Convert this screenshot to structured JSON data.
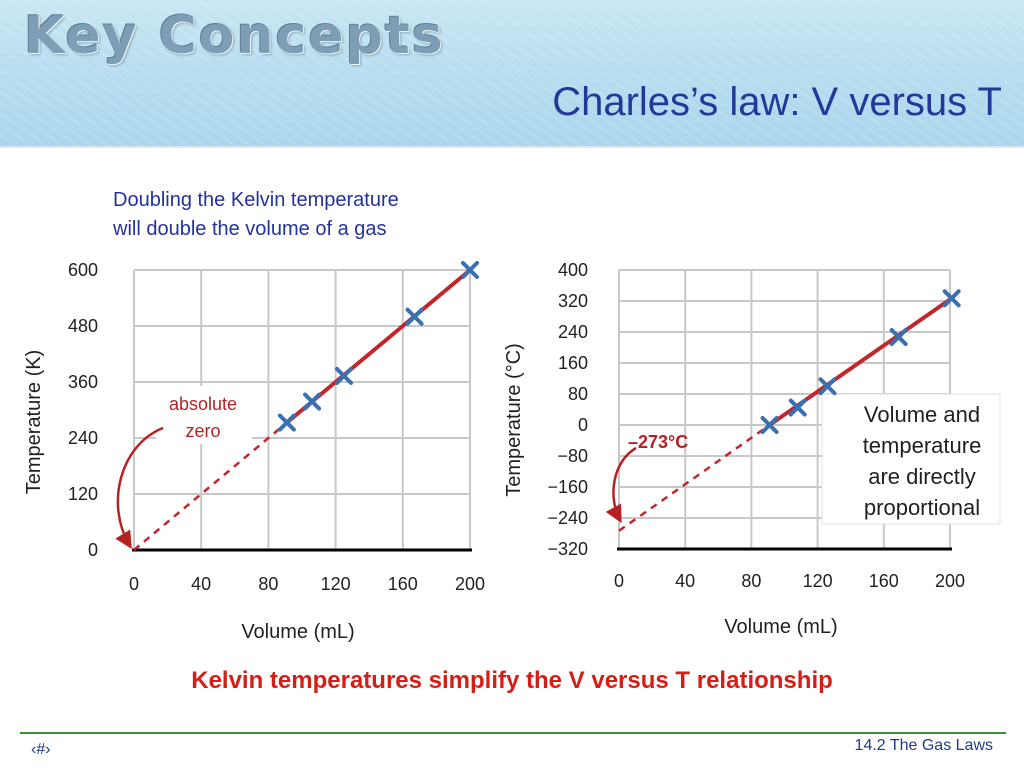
{
  "header": {
    "brand": "Key Concepts",
    "title": "Charles’s law: V versus T"
  },
  "intro": {
    "line1": "Doubling the Kelvin temperature",
    "line2": "will double the volume of a gas"
  },
  "chart_data": [
    {
      "type": "scatter",
      "xlabel": "Volume (mL)",
      "ylabel": "Temperature (K)",
      "x_ticks": [
        "0",
        "40",
        "80",
        "120",
        "160",
        "200"
      ],
      "y_ticks": [
        "0",
        "120",
        "240",
        "360",
        "480",
        "600"
      ],
      "xlim": [
        0,
        200
      ],
      "ylim": [
        0,
        600
      ],
      "grid": true,
      "points": [
        {
          "x": 91,
          "y": 273
        },
        {
          "x": 106,
          "y": 318
        },
        {
          "x": 125,
          "y": 373
        },
        {
          "x": 167,
          "y": 500
        },
        {
          "x": 200,
          "y": 600
        }
      ],
      "fit_line": {
        "from": [
          91,
          273
        ],
        "to": [
          200,
          600
        ],
        "color": "#c0262b"
      },
      "extrapolation": {
        "from": [
          0,
          0
        ],
        "to": [
          91,
          273
        ],
        "style": "dashed",
        "color": "#c0262b"
      },
      "annotation": {
        "line1": "absolute",
        "line2": "zero",
        "color": "#b52226"
      }
    },
    {
      "type": "scatter",
      "xlabel": "Volume (mL)",
      "ylabel": "Temperature (°C)",
      "x_ticks": [
        "0",
        "40",
        "80",
        "120",
        "160",
        "200"
      ],
      "y_ticks": [
        "400",
        "320",
        "240",
        "160",
        "80",
        "0",
        "−80",
        "−160",
        "−240",
        "−320"
      ],
      "xlim": [
        0,
        200
      ],
      "ylim": [
        -320,
        400
      ],
      "grid": true,
      "points": [
        {
          "x": 91,
          "y": 0
        },
        {
          "x": 108,
          "y": 45
        },
        {
          "x": 126,
          "y": 100
        },
        {
          "x": 169,
          "y": 227
        },
        {
          "x": 201,
          "y": 327
        }
      ],
      "fit_line": {
        "from": [
          91,
          0
        ],
        "to": [
          201,
          327
        ],
        "color": "#c0262b"
      },
      "extrapolation": {
        "from": [
          0,
          -273
        ],
        "to": [
          91,
          0
        ],
        "style": "dashed",
        "color": "#c0262b"
      },
      "annotation": {
        "text": "–273°C",
        "color": "#b52226"
      },
      "note": {
        "line1": "Volume and",
        "line2": "temperature",
        "line3": "are directly",
        "line4": "proportional"
      }
    }
  ],
  "colors": {
    "title": "#24389a",
    "intro": "#23329c",
    "caption": "#d41e16",
    "data_line": "#c0262b",
    "marker": "#3a70b0",
    "grid": "#c8c8c8",
    "footer_rule": "#3e8e3e"
  },
  "caption": "Kelvin temperatures simplify the V versus T relationship",
  "footer": {
    "slide_number": "‹#›",
    "section": "14.2  The Gas Laws"
  }
}
